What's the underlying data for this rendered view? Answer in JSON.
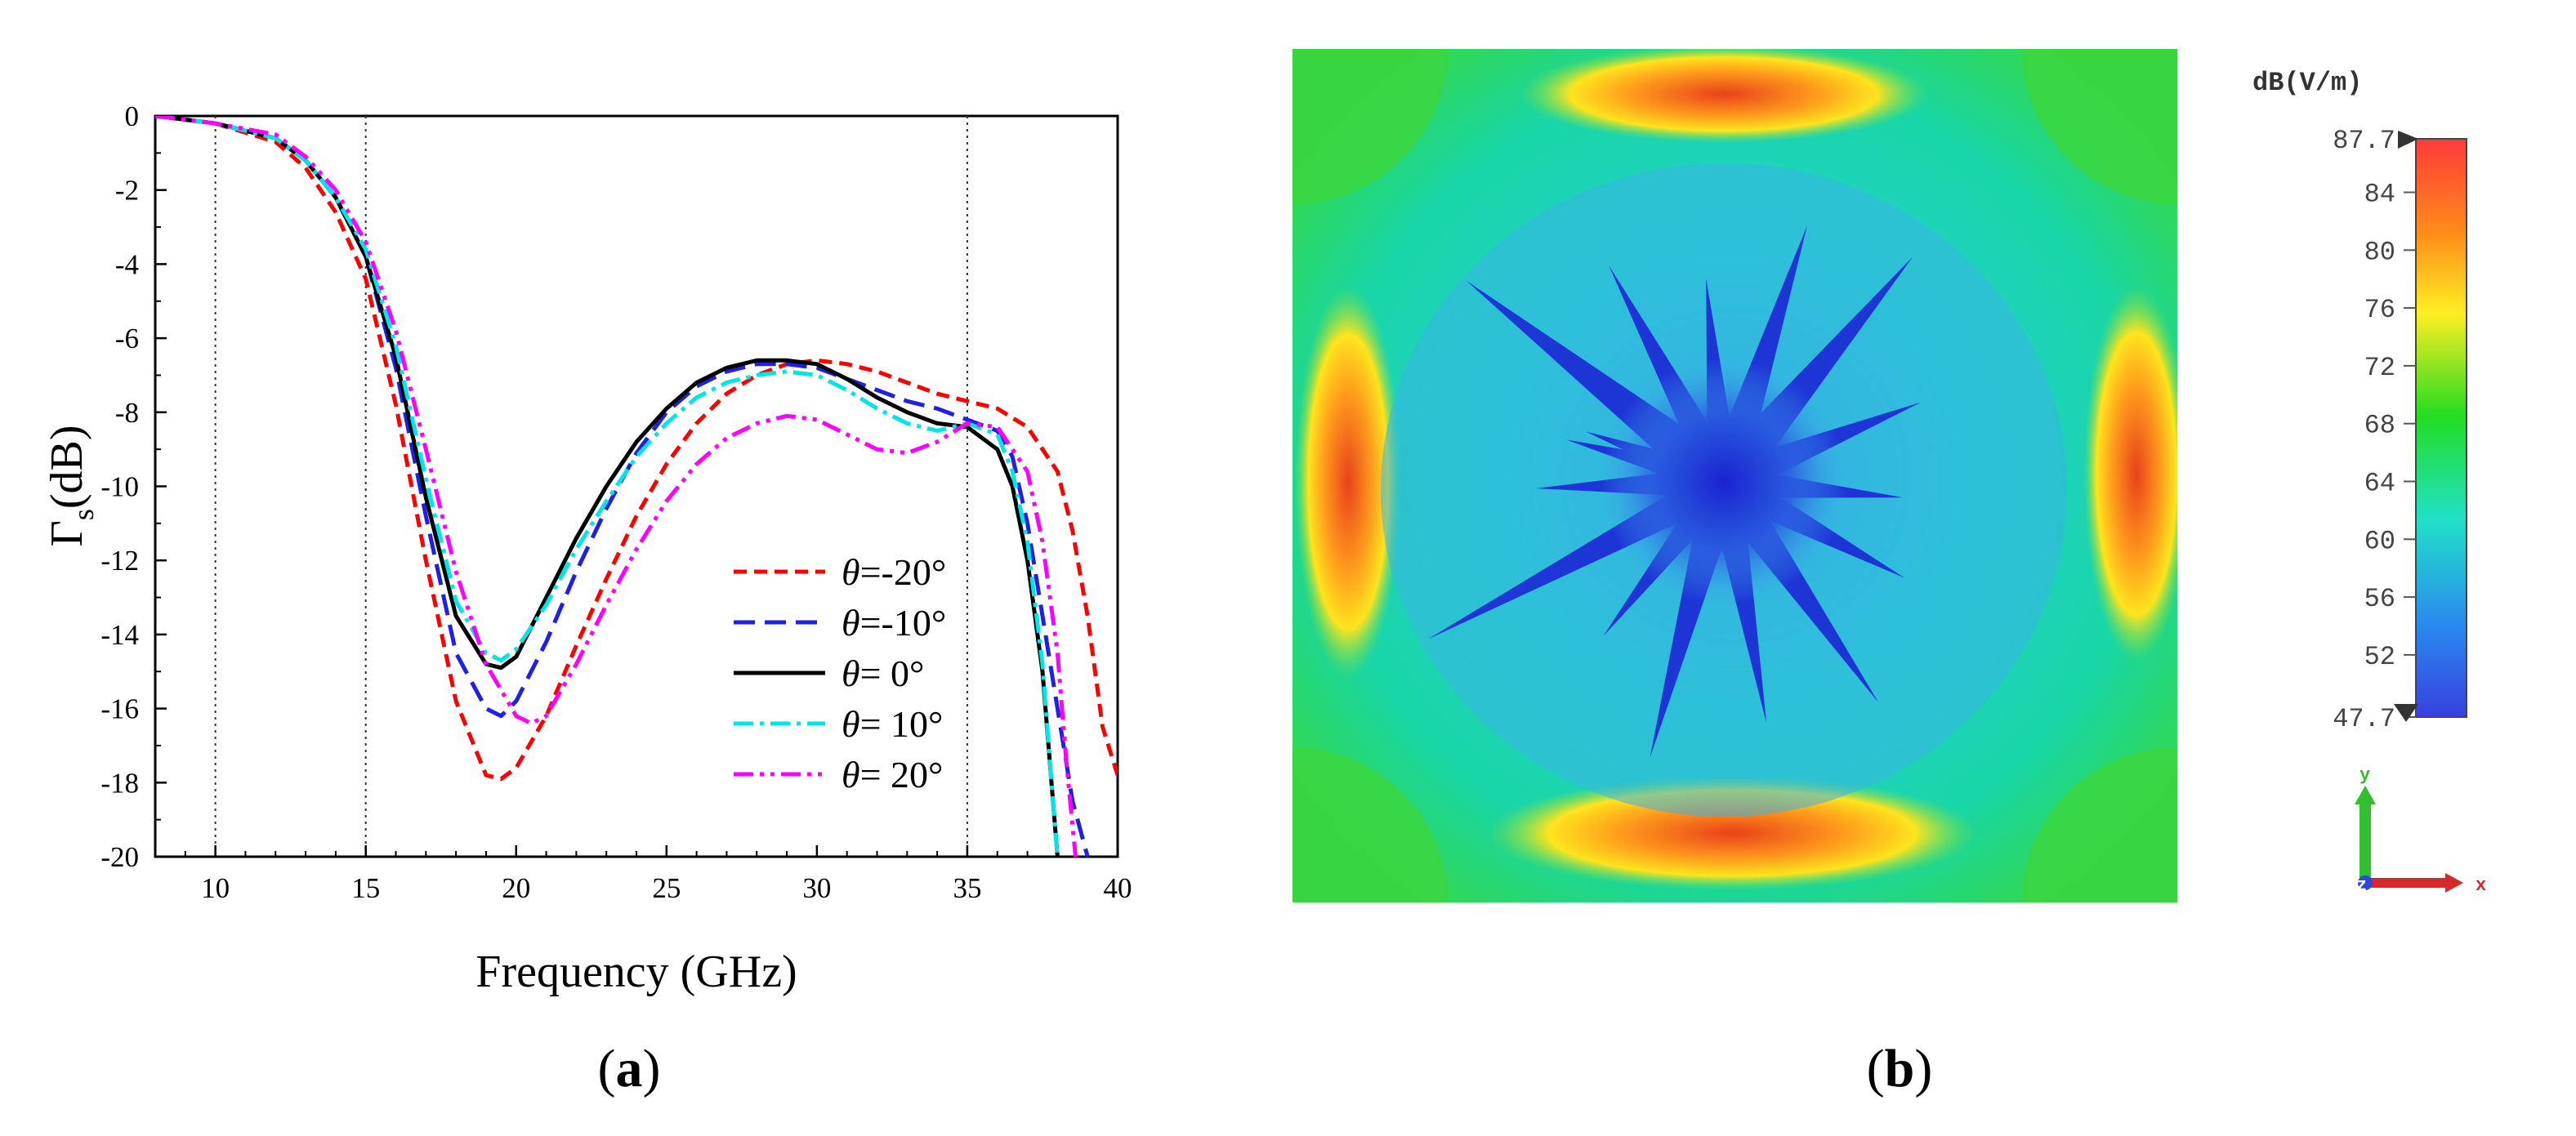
{
  "panel_a": {
    "caption": "a",
    "chart_data": {
      "type": "line",
      "xlabel": "Frequency (GHz)",
      "ylabel_main": "Γ",
      "ylabel_sub": "s",
      "ylabel_unit": "(dB)",
      "xlim": [
        8,
        40
      ],
      "ylim": [
        -20,
        0
      ],
      "x_ticks": [
        10,
        15,
        20,
        25,
        30,
        35,
        40
      ],
      "y_ticks": [
        0,
        -2,
        -4,
        -6,
        -8,
        -10,
        -12,
        -14,
        -16,
        -18,
        -20
      ],
      "vertical_reference_lines": [
        10,
        15,
        35
      ],
      "series": [
        {
          "name": "θ=-20°",
          "theta": "θ",
          "rest": "=-20°",
          "color": "#ff0000",
          "dash": "16,9",
          "x": [
            8,
            10,
            12,
            13,
            14,
            15,
            16,
            17,
            18,
            19,
            19.5,
            20,
            21,
            22,
            23,
            24,
            25,
            26,
            27,
            28,
            29,
            30,
            31,
            32,
            33,
            34,
            35,
            36,
            37,
            38,
            38.5,
            39,
            39.5,
            40
          ],
          "y": [
            0,
            -0.2,
            -0.7,
            -1.4,
            -2.6,
            -4.4,
            -7.8,
            -12,
            -15.8,
            -17.8,
            -17.9,
            -17.6,
            -16.2,
            -14.3,
            -12.5,
            -10.8,
            -9.4,
            -8.3,
            -7.5,
            -7.0,
            -6.7,
            -6.6,
            -6.7,
            -6.9,
            -7.2,
            -7.5,
            -7.7,
            -7.9,
            -8.4,
            -9.6,
            -11.2,
            -13.5,
            -16.5,
            -17.8
          ]
        },
        {
          "name": "θ=-10°",
          "theta": "θ",
          "rest": "=-10°",
          "color": "#1f1fe6",
          "dash": "26,12",
          "x": [
            8,
            10,
            12,
            13,
            14,
            15,
            16,
            17,
            18,
            19,
            19.5,
            20,
            21,
            22,
            23,
            24,
            25,
            26,
            27,
            28,
            29,
            30,
            31,
            32,
            33,
            34,
            35,
            36,
            36.5,
            37,
            37.5,
            38,
            38.5,
            39
          ],
          "y": [
            0,
            -0.2,
            -0.6,
            -1.2,
            -2.2,
            -3.8,
            -6.8,
            -10.8,
            -14.5,
            -16.0,
            -16.2,
            -15.8,
            -14.2,
            -12.3,
            -10.6,
            -9.1,
            -8.0,
            -7.3,
            -6.9,
            -6.7,
            -6.7,
            -6.8,
            -7.1,
            -7.4,
            -7.7,
            -7.9,
            -8.2,
            -8.5,
            -9.2,
            -11.0,
            -13.5,
            -16.0,
            -18.5,
            -20
          ]
        },
        {
          "name": "θ= 0°",
          "theta": "θ",
          "rest": "= 0°",
          "color": "#000000",
          "dash": "",
          "x": [
            8,
            10,
            12,
            13,
            14,
            15,
            16,
            17,
            18,
            19,
            19.5,
            20,
            21,
            22,
            23,
            24,
            25,
            26,
            27,
            28,
            29,
            30,
            31,
            32,
            33,
            34,
            35,
            36,
            36.5,
            37,
            37.5,
            37.8,
            38
          ],
          "y": [
            0,
            -0.2,
            -0.6,
            -1.2,
            -2.2,
            -3.8,
            -6.5,
            -10.3,
            -13.5,
            -14.8,
            -14.9,
            -14.6,
            -13.0,
            -11.4,
            -10.0,
            -8.8,
            -7.9,
            -7.2,
            -6.8,
            -6.6,
            -6.6,
            -6.7,
            -7.1,
            -7.6,
            -8.0,
            -8.3,
            -8.4,
            -9.0,
            -10.0,
            -12.0,
            -15.0,
            -18.0,
            -20
          ]
        },
        {
          "name": "θ= 10°",
          "theta": "θ",
          "rest": "= 10°",
          "color": "#00e5e5",
          "dash": "24,8,5,8",
          "x": [
            8,
            10,
            12,
            13,
            14,
            15,
            16,
            17,
            18,
            19,
            19.5,
            20,
            21,
            22,
            23,
            24,
            25,
            26,
            27,
            28,
            29,
            30,
            31,
            32,
            33,
            34,
            35,
            36,
            36.5,
            37,
            37.5,
            37.8,
            38
          ],
          "y": [
            0,
            -0.2,
            -0.6,
            -1.2,
            -2.2,
            -3.6,
            -6.2,
            -9.8,
            -13.1,
            -14.5,
            -14.7,
            -14.4,
            -13.2,
            -11.7,
            -10.4,
            -9.2,
            -8.3,
            -7.6,
            -7.2,
            -7.0,
            -6.9,
            -7.0,
            -7.4,
            -7.9,
            -8.3,
            -8.5,
            -8.3,
            -8.6,
            -9.6,
            -11.5,
            -14.8,
            -18.0,
            -20
          ]
        },
        {
          "name": "θ= 20°",
          "theta": "θ",
          "rest": "= 20°",
          "color": "#ff00ff",
          "dash": "24,8,5,8,5,8",
          "x": [
            8,
            10,
            12,
            13,
            14,
            15,
            16,
            17,
            18,
            19,
            20,
            20.5,
            21,
            22,
            23,
            24,
            25,
            26,
            27,
            28,
            29,
            30,
            31,
            32,
            33,
            34,
            35,
            36,
            37,
            37.5,
            38,
            38.3,
            38.6
          ],
          "y": [
            0,
            -0.2,
            -0.5,
            -1.1,
            -2.0,
            -3.4,
            -5.8,
            -9.0,
            -12.3,
            -14.8,
            -16.2,
            -16.4,
            -16.2,
            -14.8,
            -13.2,
            -11.7,
            -10.4,
            -9.4,
            -8.7,
            -8.3,
            -8.1,
            -8.2,
            -8.6,
            -9.0,
            -9.1,
            -8.8,
            -8.3,
            -8.4,
            -9.6,
            -11.5,
            -14.5,
            -17.5,
            -20
          ]
        }
      ]
    }
  },
  "panel_b": {
    "caption": "b",
    "colorbar": {
      "unit": "dB(V/m)",
      "labels": [
        "87.7",
        "84",
        "80",
        "76",
        "72",
        "68",
        "64",
        "60",
        "56",
        "52",
        "47.7"
      ],
      "values": [
        87.7,
        84,
        80,
        76,
        72,
        68,
        64,
        60,
        56,
        52,
        47.7
      ],
      "min": 47.7,
      "max": 87.7,
      "colors": [
        "#ff3a3a",
        "#ff8a1a",
        "#ffee22",
        "#22dd22",
        "#22e0c8",
        "#2a8aee",
        "#3840e0"
      ]
    },
    "axes_triad": {
      "y_label": "y",
      "x_label": "x",
      "z_label": "z"
    },
    "field_colors": {
      "edge_hot": "#e83a12",
      "edge_warm": "#ffe21a",
      "green": "#30d83c",
      "cyan_bg": "#16d6b2",
      "light_blue": "#3fb6e8",
      "deep_blue": "#1d2ad6"
    }
  }
}
